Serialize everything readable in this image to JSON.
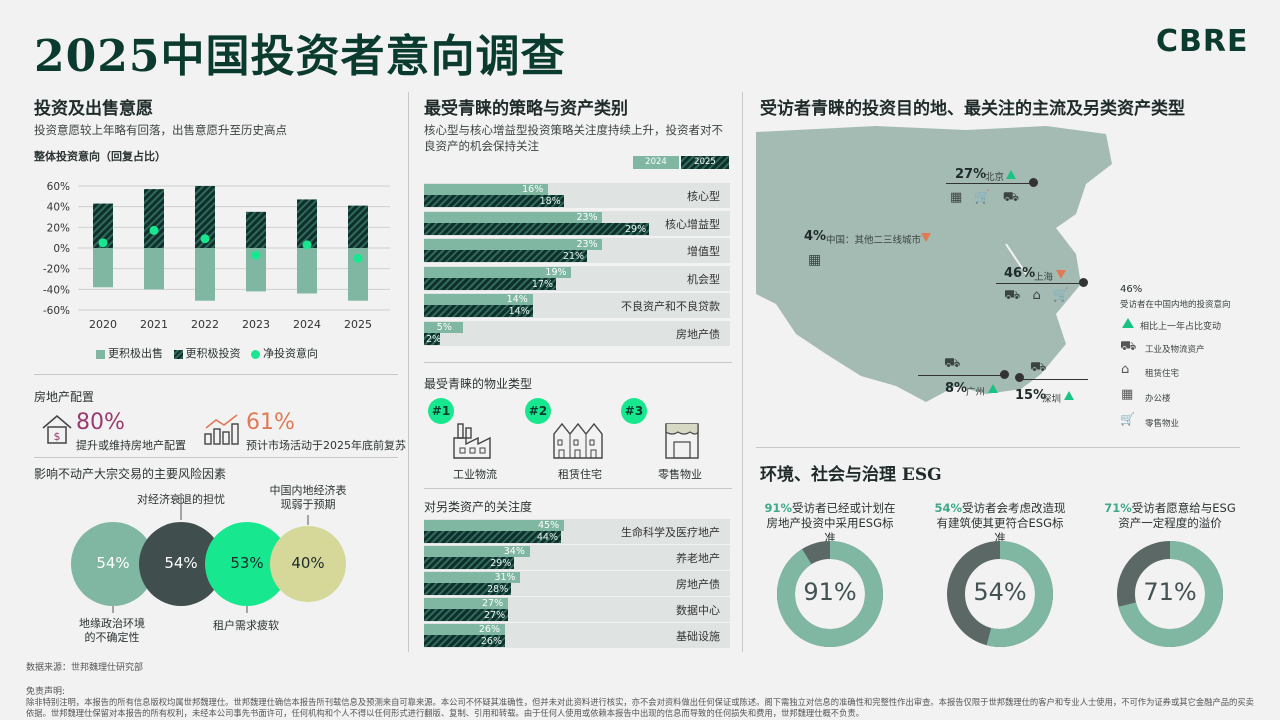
{
  "header": {
    "title": "2025中国投资者意向调查",
    "brand": "CBRE"
  },
  "section1": {
    "title": "投资及出售意愿",
    "subtitle": "投资意愿较上年略有回落，出售意愿升至历史高点",
    "chart_title": "整体投资意向（回复占比）"
  },
  "chart_data": [
    {
      "type": "bar",
      "categories": [
        "2020",
        "2021",
        "2022",
        "2023",
        "2024",
        "2025"
      ],
      "series": [
        {
          "name": "更积极出售",
          "values": [
            -38,
            -40,
            -51,
            -42,
            -44,
            -51
          ]
        },
        {
          "name": "更积极投资",
          "values": [
            43,
            57,
            60,
            35,
            47,
            41
          ]
        },
        {
          "name": "净投资意向",
          "values": [
            5,
            17,
            9,
            -7,
            3,
            -10
          ]
        }
      ],
      "ylim": [
        -60,
        60
      ],
      "yticks": [
        "60%",
        "40%",
        "20%",
        "0%",
        "-20%",
        "-40%",
        "-60%"
      ]
    },
    {
      "type": "bar",
      "categories": [
        "核心型",
        "核心增益型",
        "增值型",
        "机会型",
        "不良资产和不良贷款",
        "房地产债"
      ],
      "series": [
        {
          "name": "2024",
          "values": [
            16,
            23,
            23,
            19,
            14,
            5
          ]
        },
        {
          "name": "2025",
          "values": [
            18,
            29,
            21,
            17,
            14,
            2
          ]
        }
      ]
    },
    {
      "type": "bar",
      "categories": [
        "生命科学及医疗地产",
        "养老地产",
        "房地产债",
        "数据中心",
        "基础设施"
      ],
      "series": [
        {
          "name": "2024",
          "values": [
            45,
            34,
            31,
            27,
            26
          ]
        },
        {
          "name": "2025",
          "values": [
            44,
            29,
            28,
            27,
            26
          ]
        }
      ]
    },
    {
      "type": "pie",
      "title": "",
      "categories": [
        "91%受访者已经或计划在房地产投资中采用ESG标准",
        "54%受访者会考虑改造现有建筑使其更符合ESG标准",
        "71%受访者愿意给与ESG资产一定程度的溢价"
      ],
      "values": [
        91,
        54,
        71
      ]
    }
  ],
  "legend1": {
    "sell": "更积极出售",
    "invest": "更积极投资",
    "net": "净投资意向"
  },
  "allocation": {
    "title": "房地产配置",
    "stat1": "80%",
    "stat1_label": "提升或维持房地产配置",
    "stat2": "61%",
    "stat2_label": "预计市场活动于2025年底前复苏"
  },
  "risks": {
    "title": "影响不动产大宗交易的主要风险因素",
    "items": [
      {
        "label": "地缘政治环境\n的不确定性",
        "value": "54%"
      },
      {
        "label": "对经济衰退的担忧",
        "value": "54%"
      },
      {
        "label": "租户需求疲软",
        "value": "53%"
      },
      {
        "label": "中国内地经济表\n现弱于预期",
        "value": "40%"
      }
    ]
  },
  "section2": {
    "title": "最受青睐的策略与资产类别",
    "subtitle": "核心型与核心增益型投资策略关注度持续上升，投资者对不良资产的机会保持关注",
    "legend_2024": "2024",
    "legend_2025": "2025",
    "strategies": [
      {
        "label": "核心型",
        "v24": "16%",
        "v25": "18%"
      },
      {
        "label": "核心增益型",
        "v24": "23%",
        "v25": "29%"
      },
      {
        "label": "增值型",
        "v24": "23%",
        "v25": "21%"
      },
      {
        "label": "机会型",
        "v24": "19%",
        "v25": "17%"
      },
      {
        "label": "不良资产和不良贷款",
        "v24": "14%",
        "v25": "14%"
      },
      {
        "label": "房地产债",
        "v24": "5%",
        "v25": "2%"
      }
    ],
    "property_title": "最受青睐的物业类型",
    "properties": [
      {
        "rank": "#1",
        "label": "工业物流",
        "icon": "factory-icon"
      },
      {
        "rank": "#2",
        "label": "租赁住宅",
        "icon": "houses-icon"
      },
      {
        "rank": "#3",
        "label": "零售物业",
        "icon": "store-icon"
      }
    ],
    "alt_title": "对另类资产的关注度",
    "alternatives": [
      {
        "label": "生命科学及医疗地产",
        "v24": "45%",
        "v25": "44%"
      },
      {
        "label": "养老地产",
        "v24": "34%",
        "v25": "29%"
      },
      {
        "label": "房地产债",
        "v24": "31%",
        "v25": "28%"
      },
      {
        "label": "数据中心",
        "v24": "27%",
        "v25": "27%"
      },
      {
        "label": "基础设施",
        "v24": "26%",
        "v25": "26%"
      }
    ]
  },
  "section3": {
    "title": "受访者青睐的投资目的地、最关注的主流及另类资产类型",
    "cities": [
      {
        "pct": "27%",
        "name": "北京",
        "trend": "up"
      },
      {
        "pct": "4%",
        "name": "中国：其他二三线城市",
        "trend": "down"
      },
      {
        "pct": "46%",
        "name": "上海",
        "trend": "down"
      },
      {
        "pct": "8%",
        "name": "广州",
        "trend": "up"
      },
      {
        "pct": "15%",
        "name": "深圳",
        "trend": "up"
      }
    ],
    "legend": {
      "pct": "46%",
      "pct_label": "受访者在中国内地的投资意向",
      "trend": "相比上一年占比变动",
      "industrial": "工业及物流资产",
      "residential": "租赁住宅",
      "office": "办公楼",
      "retail": "零售物业"
    }
  },
  "esg": {
    "title": "环境、社会与治理 ESG",
    "items": [
      {
        "pct": "91%",
        "text": "受访者已经或计划在房地产投资中采用ESG标准",
        "value": "91%"
      },
      {
        "pct": "54%",
        "text": "受访者会考虑改造现有建筑使其更符合ESG标准",
        "value": "54%"
      },
      {
        "pct": "71%",
        "text": "受访者愿意给与ESG资产一定程度的溢价",
        "value": "71%"
      }
    ]
  },
  "colors": {
    "brand": "#0b3b2e",
    "accent": "#17e88f",
    "light": "#7fb7a3",
    "dark": "#435252",
    "down": "#e07a55"
  },
  "footer": {
    "source": "数据来源：世邦魏理仕研究部",
    "disclaimer_title": "免责声明:",
    "disclaimer": "除非特别注明，本报告的所有信息版权均属世邦魏理仕。世邦魏理仕确信本报告所刊载信息及预测来自可靠来源。本公司不怀疑其准确性，但并未对此资料进行核实，亦不会对资料做出任何保证或陈述。阁下需独立对信息的准确性和完整性作出审查。本报告仅限于世邦魏理仕的客户和专业人士使用，不可作为证券或其它金融产品的买卖依据。世邦魏理仕保留对本报告的所有权利，未经本公司事先书面许可，任何机构和个人不得以任何形式进行翻版、复制、引用和转载。由于任何人使用或依赖本报告中出现的信息而导致的任何损失和费用，世邦魏理仕概不负责。"
  }
}
